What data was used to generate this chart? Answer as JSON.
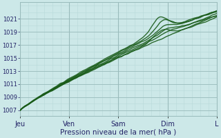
{
  "xlabel": "Pression niveau de la mer( hPa )",
  "bg_color": "#cce8e8",
  "plot_bg_color": "#cce8e8",
  "grid_major_color": "#99bbbb",
  "grid_minor_color": "#b8d8d8",
  "line_color": "#1a5c1a",
  "yticks": [
    1007,
    1009,
    1011,
    1013,
    1015,
    1017,
    1019,
    1021
  ],
  "xtick_labels": [
    "Jeu",
    "Ven",
    "Sam",
    "Dim",
    "L"
  ],
  "ymin": 1006.2,
  "ymax": 1023.5,
  "xmin": 0,
  "xmax": 100
}
